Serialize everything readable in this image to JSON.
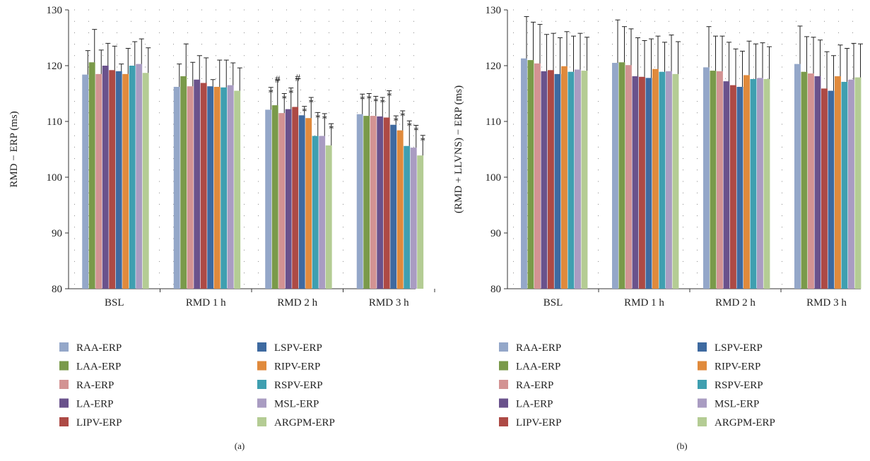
{
  "legend": [
    {
      "name": "RAA-ERP",
      "color": "#94a7c9"
    },
    {
      "name": "LAA-ERP",
      "color": "#7a9a4a"
    },
    {
      "name": "RA-ERP",
      "color": "#d39393"
    },
    {
      "name": "LA-ERP",
      "color": "#6a528c"
    },
    {
      "name": "LIPV-ERP",
      "color": "#ad4a45"
    },
    {
      "name": "LSPV-ERP",
      "color": "#3e6aa0"
    },
    {
      "name": "RIPV-ERP",
      "color": "#e08a3c"
    },
    {
      "name": "RSPV-ERP",
      "color": "#3f9fb0"
    },
    {
      "name": "MSL-ERP",
      "color": "#a99cc2"
    },
    {
      "name": "ARGPM-ERP",
      "color": "#b4cc94"
    }
  ],
  "chart_data": [
    {
      "type": "bar",
      "panel_label": "(a)",
      "ylabel": "RMD − ERP (ms)",
      "xlabel": "",
      "ylim": [
        80,
        130
      ],
      "yticks": [
        80,
        90,
        100,
        110,
        120,
        130
      ],
      "grid": "dotted",
      "categories": [
        "BSL",
        "RMD 1 h",
        "RMD 2 h",
        "RMD 3 h"
      ],
      "series": [
        {
          "name": "RAA-ERP",
          "values": [
            118.4,
            116.2,
            112.1,
            111.3
          ],
          "errors": [
            4.3,
            4.1,
            4.0,
            3.6
          ],
          "markers": [
            "",
            "",
            "*",
            "*"
          ]
        },
        {
          "name": "LAA-ERP",
          "values": [
            120.6,
            118.1,
            112.9,
            111.0
          ],
          "errors": [
            5.9,
            5.8,
            4.6,
            4.0
          ],
          "markers": [
            "",
            "",
            "#",
            "*"
          ]
        },
        {
          "name": "RA-ERP",
          "values": [
            118.5,
            116.3,
            111.5,
            111.0
          ],
          "errors": [
            4.3,
            4.3,
            3.5,
            3.5
          ],
          "markers": [
            "",
            "",
            "*",
            "*"
          ]
        },
        {
          "name": "LA-ERP",
          "values": [
            120.0,
            117.5,
            112.2,
            110.9
          ],
          "errors": [
            4.0,
            4.3,
            3.8,
            3.4
          ],
          "markers": [
            "",
            "",
            "*",
            "*"
          ]
        },
        {
          "name": "LIPV-ERP",
          "values": [
            119.2,
            116.9,
            112.6,
            110.7
          ],
          "errors": [
            4.3,
            4.5,
            5.1,
            4.8
          ],
          "markers": [
            "",
            "",
            "#",
            "*"
          ]
        },
        {
          "name": "LSPV-ERP",
          "values": [
            119.0,
            116.3,
            111.1,
            109.4
          ],
          "errors": [
            1.3,
            1.2,
            1.6,
            1.6
          ],
          "markers": [
            "",
            "",
            "*",
            "*"
          ]
        },
        {
          "name": "RIPV-ERP",
          "values": [
            118.5,
            116.2,
            110.6,
            108.4
          ],
          "errors": [
            4.6,
            4.8,
            3.7,
            3.5
          ],
          "markers": [
            "",
            "",
            "*",
            "*"
          ]
        },
        {
          "name": "RSPV-ERP",
          "values": [
            120.0,
            116.1,
            107.4,
            105.6
          ],
          "errors": [
            4.3,
            4.9,
            4.2,
            4.5
          ],
          "markers": [
            "",
            "",
            "*",
            "*"
          ]
        },
        {
          "name": "MSL-ERP",
          "values": [
            120.3,
            116.5,
            107.4,
            105.3
          ],
          "errors": [
            4.5,
            4.0,
            4.0,
            4.0
          ],
          "markers": [
            "",
            "",
            "*",
            "*"
          ]
        },
        {
          "name": "ARGPM-ERP",
          "values": [
            118.7,
            115.5,
            105.7,
            103.9
          ],
          "errors": [
            4.5,
            4.1,
            3.9,
            3.6
          ],
          "markers": [
            "",
            "",
            "*",
            "*"
          ]
        }
      ]
    },
    {
      "type": "bar",
      "panel_label": "(b)",
      "ylabel": "(RMD + LLVNS) − ERP (ms)",
      "xlabel": "",
      "ylim": [
        80,
        130
      ],
      "yticks": [
        80,
        90,
        100,
        110,
        120,
        130
      ],
      "grid": "dotted",
      "categories": [
        "BSL",
        "RMD 1 h",
        "RMD 2 h",
        "RMD 3 h"
      ],
      "series": [
        {
          "name": "RAA-ERP",
          "values": [
            121.3,
            120.5,
            119.7,
            120.3
          ],
          "errors": [
            7.5,
            7.7,
            7.3,
            6.8
          ],
          "markers": [
            "",
            "",
            "",
            ""
          ]
        },
        {
          "name": "LAA-ERP",
          "values": [
            121.0,
            120.6,
            119.1,
            118.9
          ],
          "errors": [
            6.8,
            6.4,
            6.2,
            6.3
          ],
          "markers": [
            "",
            "",
            "",
            ""
          ]
        },
        {
          "name": "RA-ERP",
          "values": [
            120.4,
            120.1,
            119.0,
            118.6
          ],
          "errors": [
            7.0,
            6.5,
            6.3,
            6.5
          ],
          "markers": [
            "",
            "",
            "",
            ""
          ]
        },
        {
          "name": "LA-ERP",
          "values": [
            119.0,
            118.1,
            117.2,
            118.1
          ],
          "errors": [
            6.6,
            6.9,
            7.0,
            6.5
          ],
          "markers": [
            "",
            "",
            "",
            ""
          ]
        },
        {
          "name": "LIPV-ERP",
          "values": [
            119.2,
            118.0,
            116.5,
            115.9
          ],
          "errors": [
            6.6,
            6.5,
            6.5,
            6.6
          ],
          "markers": [
            "",
            "",
            "",
            ""
          ]
        },
        {
          "name": "LSPV-ERP",
          "values": [
            118.5,
            117.8,
            116.2,
            115.5
          ],
          "errors": [
            6.5,
            7.0,
            6.4,
            6.3
          ],
          "markers": [
            "",
            "",
            "",
            ""
          ]
        },
        {
          "name": "RIPV-ERP",
          "values": [
            119.9,
            119.4,
            118.3,
            118.1
          ],
          "errors": [
            6.2,
            5.9,
            6.1,
            5.6
          ],
          "markers": [
            "",
            "",
            "",
            ""
          ]
        },
        {
          "name": "RSPV-ERP",
          "values": [
            118.9,
            118.9,
            117.6,
            117.1
          ],
          "errors": [
            6.4,
            5.3,
            6.3,
            6.0
          ],
          "markers": [
            "",
            "",
            "",
            ""
          ]
        },
        {
          "name": "MSL-ERP",
          "values": [
            119.3,
            119.0,
            117.8,
            117.5
          ],
          "errors": [
            6.5,
            6.5,
            6.3,
            6.5
          ],
          "markers": [
            "",
            "",
            "",
            ""
          ]
        },
        {
          "name": "ARGPM-ERP",
          "values": [
            119.1,
            118.5,
            117.6,
            117.9
          ],
          "errors": [
            6.0,
            5.8,
            5.8,
            6.0
          ],
          "markers": [
            "",
            "",
            "",
            ""
          ]
        }
      ]
    }
  ]
}
